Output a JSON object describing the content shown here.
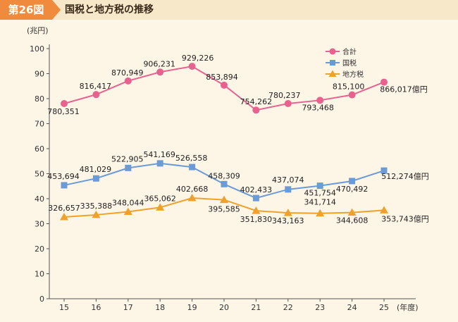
{
  "header": {
    "badge": "第26図",
    "title": "国税と地方税の推移"
  },
  "chart_data": {
    "type": "line",
    "title": "国税と地方税の推移",
    "ylabel": "(兆円)",
    "xlabel": "(年度)",
    "ylim": [
      0,
      100
    ],
    "yticks": [
      0,
      10,
      20,
      30,
      40,
      50,
      60,
      70,
      80,
      90,
      100
    ],
    "categories": [
      "15",
      "16",
      "17",
      "18",
      "19",
      "20",
      "21",
      "22",
      "23",
      "24",
      "25"
    ],
    "legend_position": "top-right",
    "series": [
      {
        "name": "合計",
        "color": "#e8628f",
        "marker": "circle",
        "values": [
          78.0351,
          81.6417,
          87.0949,
          90.6231,
          92.9226,
          85.3894,
          75.4262,
          78.0237,
          79.3468,
          81.51,
          86.6017
        ],
        "labels": [
          "780,351",
          "816,417",
          "870,949",
          "906,231",
          "929,226",
          "853,894",
          "754,262",
          "780,237",
          "793,468",
          "815,100",
          "866,017億円"
        ]
      },
      {
        "name": "国税",
        "color": "#6b9bd6",
        "marker": "square",
        "values": [
          45.3694,
          48.1029,
          52.2905,
          54.1169,
          52.6558,
          45.8309,
          40.2433,
          43.7074,
          45.1754,
          47.0492,
          51.2274
        ],
        "labels": [
          "453,694",
          "481,029",
          "522,905",
          "541,169",
          "526,558",
          "458,309",
          "402,433",
          "437,074",
          "451,754",
          "470,492",
          "512,274億円"
        ]
      },
      {
        "name": "地方税",
        "color": "#f0a12c",
        "marker": "triangle",
        "values": [
          32.6657,
          33.5388,
          34.8044,
          36.5062,
          40.2668,
          39.5585,
          35.183,
          34.3163,
          34.1714,
          34.4608,
          35.3743
        ],
        "labels": [
          "326,657",
          "335,388",
          "348,044",
          "365,062",
          "402,668",
          "395,585",
          "351,830",
          "343,163",
          "341,714",
          "344,608",
          "353,743億円"
        ]
      }
    ]
  }
}
